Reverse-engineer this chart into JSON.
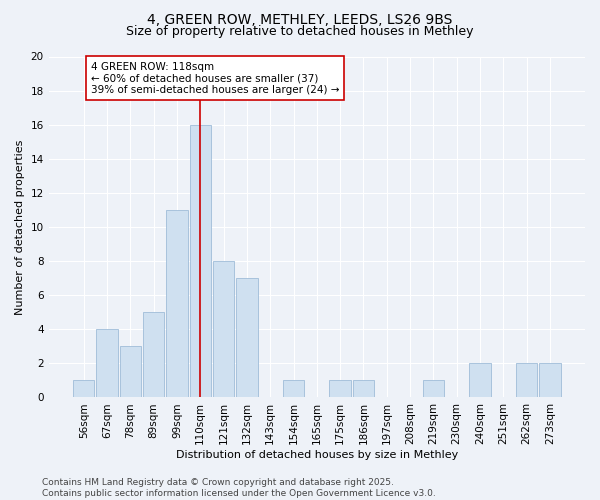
{
  "title_line1": "4, GREEN ROW, METHLEY, LEEDS, LS26 9BS",
  "title_line2": "Size of property relative to detached houses in Methley",
  "xlabel": "Distribution of detached houses by size in Methley",
  "ylabel": "Number of detached properties",
  "categories": [
    "56sqm",
    "67sqm",
    "78sqm",
    "89sqm",
    "99sqm",
    "110sqm",
    "121sqm",
    "132sqm",
    "143sqm",
    "154sqm",
    "165sqm",
    "175sqm",
    "186sqm",
    "197sqm",
    "208sqm",
    "219sqm",
    "230sqm",
    "240sqm",
    "251sqm",
    "262sqm",
    "273sqm"
  ],
  "values": [
    1,
    4,
    3,
    5,
    11,
    16,
    8,
    7,
    0,
    1,
    0,
    1,
    1,
    0,
    0,
    1,
    0,
    2,
    0,
    2,
    2
  ],
  "bar_color": "#cfe0f0",
  "bar_edge_color": "#9fbcd8",
  "vline_x": 5,
  "vline_color": "#cc0000",
  "annotation_text": "4 GREEN ROW: 118sqm\n← 60% of detached houses are smaller (37)\n39% of semi-detached houses are larger (24) →",
  "annotation_box_facecolor": "#ffffff",
  "annotation_box_edgecolor": "#cc0000",
  "ylim": [
    0,
    20
  ],
  "yticks": [
    0,
    2,
    4,
    6,
    8,
    10,
    12,
    14,
    16,
    18,
    20
  ],
  "background_color": "#eef2f8",
  "footer_text": "Contains HM Land Registry data © Crown copyright and database right 2025.\nContains public sector information licensed under the Open Government Licence v3.0.",
  "title_fontsize": 10,
  "subtitle_fontsize": 9,
  "axis_label_fontsize": 8,
  "tick_fontsize": 7.5,
  "annotation_fontsize": 7.5,
  "footer_fontsize": 6.5
}
